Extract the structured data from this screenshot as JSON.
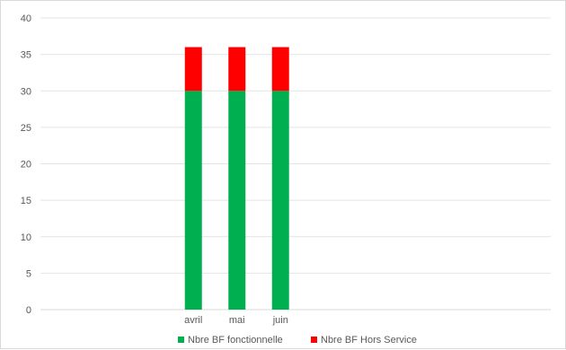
{
  "chart_data": {
    "type": "bar",
    "stacked": true,
    "title": "",
    "xlabel": "",
    "ylabel": "",
    "categories": [
      "avril",
      "mai",
      "juin"
    ],
    "series": [
      {
        "name": "Nbre BF fonctionnelle",
        "values": [
          30,
          30,
          30
        ],
        "color": "#00b050"
      },
      {
        "name": "Nbre BF Hors Service",
        "values": [
          6,
          6,
          6
        ],
        "color": "#ff0000"
      }
    ],
    "ylim": [
      0,
      40
    ],
    "yticks": [
      0,
      5,
      10,
      15,
      20,
      25,
      30,
      35,
      40
    ],
    "grid": true,
    "legend_position": "bottom"
  }
}
